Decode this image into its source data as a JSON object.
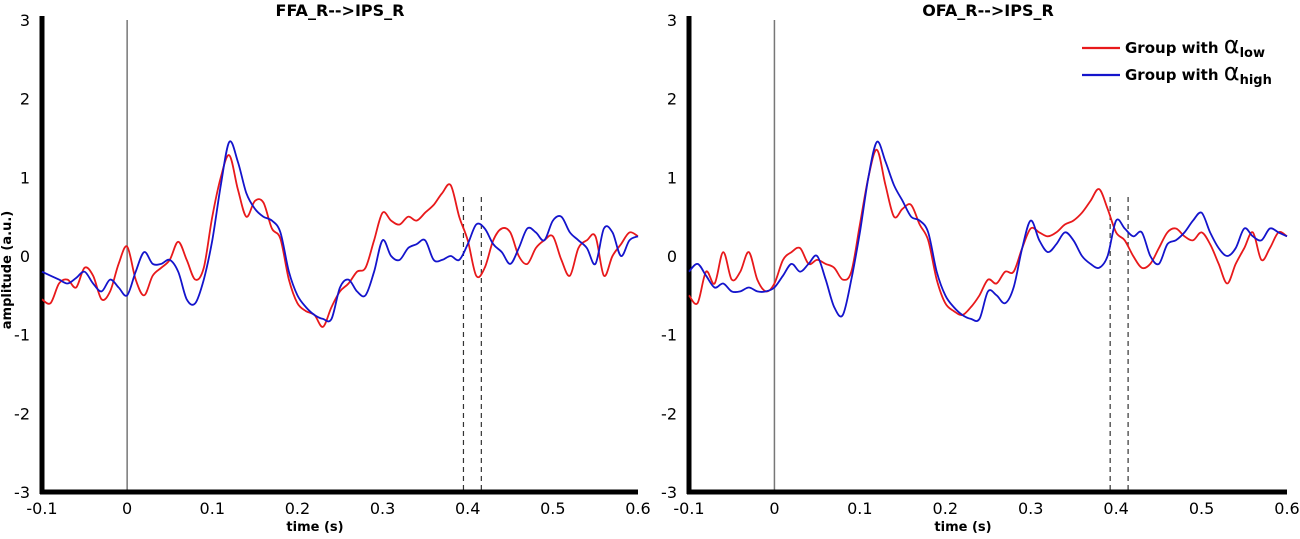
{
  "chart_data": [
    {
      "type": "line",
      "title": "FFA_R-->IPS_R",
      "xlabel": "time (s)",
      "ylabel": "amplitude (a.u.)",
      "xlim": [
        -0.1,
        0.6
      ],
      "ylim": [
        -3,
        3
      ],
      "xticks": [
        "-0.1",
        "0",
        "0.1",
        "0.2",
        "0.3",
        "0.4",
        "0.5",
        "0.6"
      ],
      "yticks": [
        "3",
        "2",
        "1",
        "0",
        "-1",
        "-2",
        "-3"
      ],
      "vline_solid": 0.0,
      "vlines_dashed": [
        0.395,
        0.416
      ],
      "legend": null,
      "series": [
        {
          "color": "#e8191b",
          "x": [
            -0.1,
            -0.09,
            -0.08,
            -0.07,
            -0.06,
            -0.05,
            -0.04,
            -0.03,
            -0.02,
            -0.01,
            0.0,
            0.01,
            0.02,
            0.03,
            0.04,
            0.05,
            0.06,
            0.07,
            0.08,
            0.09,
            0.1,
            0.11,
            0.12,
            0.13,
            0.14,
            0.15,
            0.16,
            0.17,
            0.18,
            0.19,
            0.2,
            0.21,
            0.22,
            0.23,
            0.24,
            0.25,
            0.26,
            0.27,
            0.28,
            0.29,
            0.3,
            0.31,
            0.32,
            0.33,
            0.34,
            0.35,
            0.36,
            0.37,
            0.38,
            0.39,
            0.4,
            0.41,
            0.42,
            0.43,
            0.44,
            0.45,
            0.46,
            0.47,
            0.48,
            0.49,
            0.5,
            0.51,
            0.52,
            0.53,
            0.54,
            0.55,
            0.56,
            0.57,
            0.58,
            0.59,
            0.6
          ],
          "y": [
            -0.55,
            -0.6,
            -0.35,
            -0.3,
            -0.4,
            -0.15,
            -0.25,
            -0.55,
            -0.45,
            -0.1,
            0.12,
            -0.3,
            -0.5,
            -0.25,
            -0.15,
            -0.05,
            0.18,
            -0.05,
            -0.3,
            -0.15,
            0.5,
            1.0,
            1.28,
            0.85,
            0.5,
            0.7,
            0.68,
            0.35,
            0.22,
            -0.3,
            -0.6,
            -0.7,
            -0.75,
            -0.9,
            -0.65,
            -0.45,
            -0.35,
            -0.2,
            -0.15,
            0.2,
            0.55,
            0.45,
            0.4,
            0.5,
            0.45,
            0.55,
            0.65,
            0.8,
            0.9,
            0.5,
            0.2,
            -0.25,
            -0.15,
            0.2,
            0.35,
            0.3,
            0.0,
            -0.1,
            0.1,
            0.2,
            0.25,
            -0.05,
            -0.25,
            0.1,
            0.2,
            0.25,
            -0.25,
            0.0,
            0.15,
            0.3,
            0.25
          ]
        },
        {
          "color": "#1414cc",
          "x": [
            -0.1,
            -0.09,
            -0.08,
            -0.07,
            -0.06,
            -0.05,
            -0.04,
            -0.03,
            -0.02,
            -0.01,
            0.0,
            0.01,
            0.02,
            0.03,
            0.04,
            0.05,
            0.06,
            0.07,
            0.08,
            0.09,
            0.1,
            0.11,
            0.12,
            0.13,
            0.14,
            0.15,
            0.16,
            0.17,
            0.18,
            0.19,
            0.2,
            0.21,
            0.22,
            0.23,
            0.24,
            0.25,
            0.26,
            0.27,
            0.28,
            0.29,
            0.3,
            0.31,
            0.32,
            0.33,
            0.34,
            0.35,
            0.36,
            0.37,
            0.38,
            0.39,
            0.4,
            0.41,
            0.42,
            0.43,
            0.44,
            0.45,
            0.46,
            0.47,
            0.48,
            0.49,
            0.5,
            0.51,
            0.52,
            0.53,
            0.54,
            0.55,
            0.56,
            0.57,
            0.58,
            0.59,
            0.6
          ],
          "y": [
            -0.2,
            -0.25,
            -0.3,
            -0.35,
            -0.28,
            -0.2,
            -0.35,
            -0.45,
            -0.3,
            -0.4,
            -0.5,
            -0.2,
            0.05,
            -0.1,
            -0.1,
            -0.05,
            -0.2,
            -0.55,
            -0.6,
            -0.3,
            0.2,
            0.9,
            1.45,
            1.2,
            0.8,
            0.6,
            0.5,
            0.45,
            0.3,
            -0.2,
            -0.5,
            -0.65,
            -0.75,
            -0.8,
            -0.8,
            -0.4,
            -0.3,
            -0.45,
            -0.5,
            -0.2,
            0.2,
            0.0,
            -0.05,
            0.1,
            0.15,
            0.2,
            -0.05,
            -0.05,
            0.0,
            -0.05,
            0.15,
            0.4,
            0.35,
            0.15,
            0.05,
            -0.1,
            0.1,
            0.35,
            0.3,
            0.2,
            0.45,
            0.5,
            0.3,
            0.2,
            0.1,
            -0.1,
            0.35,
            0.3,
            0.0,
            0.2,
            0.25
          ]
        }
      ]
    },
    {
      "type": "line",
      "title": "OFA_R-->IPS_R",
      "xlabel": "time (s)",
      "ylabel": "",
      "xlim": [
        -0.1,
        0.6
      ],
      "ylim": [
        -3,
        3
      ],
      "xticks": [
        "-0.1",
        "0",
        "0.1",
        "0.2",
        "0.3",
        "0.4",
        "0.5",
        "0.6"
      ],
      "yticks": [
        "3",
        "2",
        "1",
        "0",
        "-1",
        "-2",
        "-3"
      ],
      "vline_solid": 0.0,
      "vlines_dashed": [
        0.393,
        0.414
      ],
      "legend": {
        "position": "top-right",
        "entries": [
          {
            "prefix": "Group with ",
            "symbol": "α",
            "subscript": "low",
            "color": "#e8191b"
          },
          {
            "prefix": "Group with ",
            "symbol": "α",
            "subscript": "high",
            "color": "#1414cc"
          }
        ]
      },
      "series": [
        {
          "color": "#e8191b",
          "x": [
            -0.1,
            -0.09,
            -0.08,
            -0.07,
            -0.06,
            -0.05,
            -0.04,
            -0.03,
            -0.02,
            -0.01,
            0.0,
            0.01,
            0.02,
            0.03,
            0.04,
            0.05,
            0.06,
            0.07,
            0.08,
            0.09,
            0.1,
            0.11,
            0.12,
            0.13,
            0.14,
            0.15,
            0.16,
            0.17,
            0.18,
            0.19,
            0.2,
            0.21,
            0.22,
            0.23,
            0.24,
            0.25,
            0.26,
            0.27,
            0.28,
            0.29,
            0.3,
            0.31,
            0.32,
            0.33,
            0.34,
            0.35,
            0.36,
            0.37,
            0.38,
            0.39,
            0.4,
            0.41,
            0.42,
            0.43,
            0.44,
            0.45,
            0.46,
            0.47,
            0.48,
            0.49,
            0.5,
            0.51,
            0.52,
            0.53,
            0.54,
            0.55,
            0.56,
            0.57,
            0.58,
            0.59,
            0.6
          ],
          "y": [
            -0.5,
            -0.6,
            -0.2,
            -0.35,
            0.05,
            -0.3,
            -0.2,
            0.05,
            -0.3,
            -0.45,
            -0.35,
            -0.05,
            0.05,
            0.1,
            -0.1,
            -0.05,
            -0.1,
            -0.15,
            -0.3,
            -0.2,
            0.4,
            1.0,
            1.35,
            0.9,
            0.5,
            0.6,
            0.65,
            0.4,
            0.2,
            -0.3,
            -0.6,
            -0.7,
            -0.75,
            -0.65,
            -0.5,
            -0.3,
            -0.35,
            -0.2,
            -0.2,
            0.1,
            0.35,
            0.3,
            0.25,
            0.3,
            0.4,
            0.45,
            0.55,
            0.7,
            0.85,
            0.6,
            0.3,
            0.2,
            0.0,
            -0.15,
            -0.1,
            0.1,
            0.3,
            0.35,
            0.25,
            0.2,
            0.3,
            0.15,
            -0.1,
            -0.35,
            -0.1,
            0.1,
            0.3,
            -0.05,
            0.1,
            0.3,
            0.25
          ]
        },
        {
          "color": "#1414cc",
          "x": [
            -0.1,
            -0.09,
            -0.08,
            -0.07,
            -0.06,
            -0.05,
            -0.04,
            -0.03,
            -0.02,
            -0.01,
            0.0,
            0.01,
            0.02,
            0.03,
            0.04,
            0.05,
            0.06,
            0.07,
            0.08,
            0.09,
            0.1,
            0.11,
            0.12,
            0.13,
            0.14,
            0.15,
            0.16,
            0.17,
            0.18,
            0.19,
            0.2,
            0.21,
            0.22,
            0.23,
            0.24,
            0.25,
            0.26,
            0.27,
            0.28,
            0.29,
            0.3,
            0.31,
            0.32,
            0.33,
            0.34,
            0.35,
            0.36,
            0.37,
            0.38,
            0.39,
            0.4,
            0.41,
            0.42,
            0.43,
            0.44,
            0.45,
            0.46,
            0.47,
            0.48,
            0.49,
            0.5,
            0.51,
            0.52,
            0.53,
            0.54,
            0.55,
            0.56,
            0.57,
            0.58,
            0.59,
            0.6
          ],
          "y": [
            -0.2,
            -0.1,
            -0.25,
            -0.4,
            -0.35,
            -0.45,
            -0.45,
            -0.4,
            -0.45,
            -0.45,
            -0.4,
            -0.25,
            -0.1,
            -0.2,
            -0.1,
            0.0,
            -0.3,
            -0.65,
            -0.75,
            -0.3,
            0.3,
            1.0,
            1.45,
            1.2,
            0.9,
            0.7,
            0.5,
            0.45,
            0.3,
            -0.2,
            -0.5,
            -0.65,
            -0.75,
            -0.8,
            -0.8,
            -0.45,
            -0.5,
            -0.6,
            -0.4,
            0.1,
            0.45,
            0.2,
            0.05,
            0.15,
            0.3,
            0.2,
            0.0,
            -0.1,
            -0.15,
            0.0,
            0.45,
            0.35,
            0.25,
            0.3,
            0.0,
            -0.1,
            0.15,
            0.2,
            0.3,
            0.45,
            0.55,
            0.3,
            0.1,
            0.0,
            0.1,
            0.35,
            0.25,
            0.2,
            0.35,
            0.3,
            0.25
          ]
        }
      ]
    }
  ]
}
